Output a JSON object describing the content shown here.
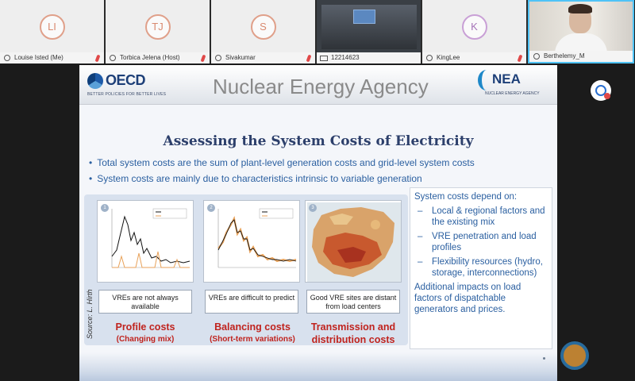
{
  "participants": [
    {
      "initials": "LI",
      "name": "Louise Isted (Me)",
      "type": "avatar"
    },
    {
      "initials": "TJ",
      "name": "Torbica Jelena (Host)",
      "type": "avatar"
    },
    {
      "initials": "S",
      "name": "Sivakumar",
      "type": "avatar"
    },
    {
      "initials": "",
      "name": "12214623",
      "type": "video"
    },
    {
      "initials": "K",
      "name": "KingLee",
      "type": "avatar"
    },
    {
      "initials": "",
      "name": "Berthelemy_M",
      "type": "camera"
    }
  ],
  "slide": {
    "oecd_logo_text": "OECD",
    "oecd_tagline": "BETTER POLICIES FOR BETTER LIVES",
    "agency_title": "Nuclear Energy Agency",
    "nea_logo_text": "NEA",
    "nea_tagline": "NUCLEAR ENERGY AGENCY",
    "title": "Assessing the System Costs of Electricity",
    "bullets": [
      "Total system costs are the sum of plant-level generation costs and grid-level system costs",
      "System costs are mainly due to characteristics intrinsic to variable generation"
    ],
    "source": "Source: L. Hirth",
    "panels": [
      {
        "number": "1",
        "caption": "VREs are not always available",
        "cost": "Profile costs",
        "sub": "(Changing mix)"
      },
      {
        "number": "2",
        "caption": "VREs are difficult to predict",
        "cost": "Balancing costs",
        "sub": "(Short-term variations)"
      },
      {
        "number": "3",
        "caption": "Good VRE sites are distant from load centers",
        "cost": "Transmission and",
        "sub": "distribution costs"
      }
    ],
    "right_box": {
      "heading": "System costs depend on:",
      "items": [
        "Local & regional factors and the existing mix",
        "VRE penetration and load profiles",
        "Flexibility resources (hydro, storage, interconnections)"
      ],
      "footer": "Additional impacts on load factors of dispatchable generators and prices."
    }
  },
  "colors": {
    "accent_blue": "#2a5fa0",
    "cost_red": "#c0231e",
    "active_speaker": "#4fc3f7"
  }
}
